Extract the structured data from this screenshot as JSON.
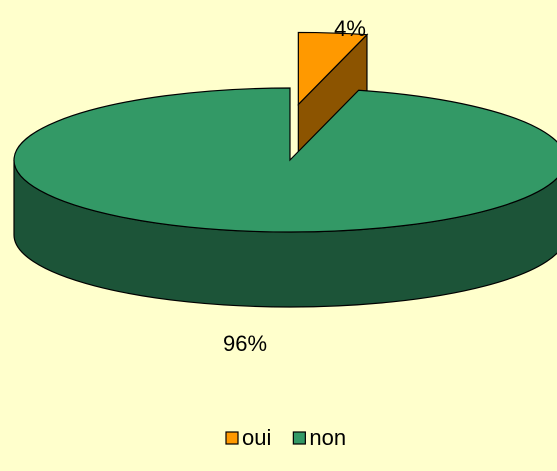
{
  "chart_data": {
    "type": "pie",
    "categories": [
      "oui",
      "non"
    ],
    "values": [
      4,
      96
    ],
    "value_labels": [
      "4%",
      "96%"
    ],
    "colors": [
      "#FF9900",
      "#339966"
    ],
    "legend": "bottom"
  }
}
